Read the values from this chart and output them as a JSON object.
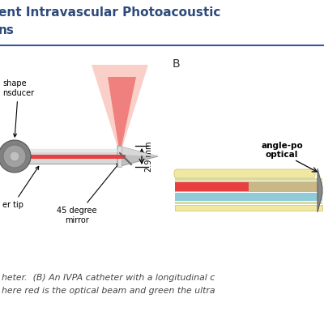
{
  "title_line1": "ent Intravascular Photoacoustic",
  "title_line2": "ns",
  "title_color": "#2e4a7a",
  "title_fontsize": 11,
  "bg_color": "#ffffff",
  "label_B": "B",
  "caption_text1": "heter.  (B) An IVPA catheter with a longitudinal c",
  "caption_text2": "here red is the optical beam and green the ultra",
  "caption_color": "#444444",
  "caption_fontsize": 7.8,
  "annotation_transducer": "shape\nnsducer",
  "annotation_tip": "er tip",
  "annotation_mirror": "45 degree\nmirror",
  "annotation_dim": "2.9 mm",
  "annotation_anglepo_1": "angle-po",
  "annotation_anglepo_2": "optical",
  "divider_color": "#3a5a9a",
  "beam_color_outer": "#f5a090",
  "beam_color_inner": "#e84040",
  "catheter_gray_light": "#d8d8d8",
  "catheter_gray_mid": "#c0c0c0",
  "catheter_gray_dark": "#a0a0a0",
  "red_fiber": "#e84040",
  "disk_outer": "#808080",
  "disk_mid": "#a0a0a0",
  "layer_yellow": "#f0e8a0",
  "layer_tan": "#c8b888",
  "layer_red": "#e84040",
  "layer_blue": "#90ccd8",
  "layer_thin_yellow": "#d8d8a0"
}
